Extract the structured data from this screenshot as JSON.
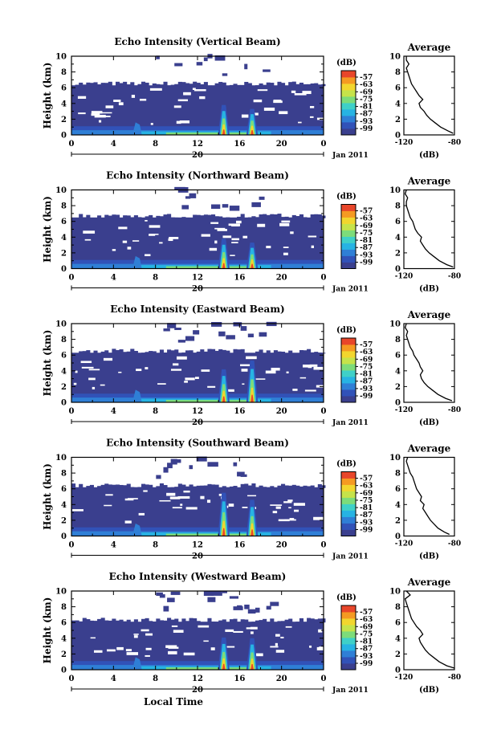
{
  "chart_data": [
    {
      "type": "heatmap",
      "title": "Echo Intensity (Vertical Beam)",
      "ylabel": "Height (km)",
      "x_ticks": [
        "0",
        "4",
        "8",
        "12",
        "16",
        "20",
        "0"
      ],
      "date_tick": "20",
      "date_label": "Jan 2011",
      "y_ticks": [
        "0",
        "2",
        "4",
        "6",
        "8",
        "10"
      ],
      "xlim": [
        0,
        24
      ],
      "ylim": [
        0,
        10
      ],
      "colorbar": {
        "unit": "(dB)",
        "ticks": [
          "-57",
          "-63",
          "-69",
          "-75",
          "-81",
          "-87",
          "-93",
          "-99"
        ]
      },
      "echo_top_km": 6.3,
      "spikes": [
        {
          "time_h": 14.5,
          "top_km": 3.8
        },
        {
          "time_h": 17.2,
          "top_km": 3.3
        }
      ],
      "profile": {
        "title": "Average",
        "xlabel": "(dB)",
        "x_ticks": [
          "-120",
          "-80"
        ],
        "xlim": [
          -120,
          -80
        ],
        "height_km": [
          0.2,
          0.5,
          1.0,
          1.5,
          2.0,
          2.5,
          3.0,
          3.5,
          4.0,
          4.5,
          5.0,
          5.5,
          6.0,
          6.5,
          7.0,
          7.5,
          8.0,
          8.5,
          9.0,
          9.5,
          10.0
        ],
        "values_db": [
          -81,
          -85,
          -91,
          -95,
          -99,
          -102,
          -104,
          -107,
          -108,
          -105,
          -108,
          -110,
          -112,
          -114,
          -115,
          -116,
          -117,
          -118,
          -116,
          -118,
          -118
        ]
      }
    },
    {
      "type": "heatmap",
      "title": "Echo Intensity (Northward Beam)",
      "ylabel": "Height (km)",
      "x_ticks": [
        "0",
        "4",
        "8",
        "12",
        "16",
        "20",
        "0"
      ],
      "date_tick": "20",
      "date_label": "Jan 2011",
      "y_ticks": [
        "0",
        "2",
        "4",
        "6",
        "8",
        "10"
      ],
      "xlim": [
        0,
        24
      ],
      "ylim": [
        0,
        10
      ],
      "colorbar": {
        "unit": "(dB)",
        "ticks": [
          "-57",
          "-63",
          "-69",
          "-75",
          "-81",
          "-87",
          "-93",
          "-99"
        ]
      },
      "echo_top_km": 6.5,
      "spikes": [
        {
          "time_h": 14.5,
          "top_km": 3.8
        },
        {
          "time_h": 17.2,
          "top_km": 3.3
        }
      ],
      "profile": {
        "title": "Average",
        "xlabel": "(dB)",
        "x_ticks": [
          "-120",
          "-80"
        ],
        "xlim": [
          -120,
          -80
        ],
        "height_km": [
          0.2,
          0.5,
          1.0,
          1.5,
          2.0,
          2.5,
          3.0,
          3.5,
          4.0,
          4.5,
          5.0,
          5.5,
          6.0,
          6.5,
          7.0,
          7.5,
          8.0,
          8.5,
          9.0,
          9.5,
          10.0
        ],
        "values_db": [
          -81,
          -86,
          -92,
          -96,
          -100,
          -103,
          -105,
          -107,
          -106,
          -109,
          -111,
          -112,
          -113,
          -115,
          -116,
          -117,
          -118,
          -118,
          -117,
          -119,
          -118
        ]
      }
    },
    {
      "type": "heatmap",
      "title": "Echo Intensity (Eastward Beam)",
      "ylabel": "Height (km)",
      "x_ticks": [
        "0",
        "4",
        "8",
        "12",
        "16",
        "20",
        "0"
      ],
      "date_tick": "20",
      "date_label": "Jan 2011",
      "y_ticks": [
        "0",
        "2",
        "4",
        "6",
        "8",
        "10"
      ],
      "xlim": [
        0,
        24
      ],
      "ylim": [
        0,
        10
      ],
      "colorbar": {
        "unit": "(dB)",
        "ticks": [
          "-57",
          "-63",
          "-69",
          "-75",
          "-81",
          "-87",
          "-93",
          "-99"
        ]
      },
      "echo_top_km": 6.3,
      "spikes": [
        {
          "time_h": 14.5,
          "top_km": 4.2
        },
        {
          "time_h": 17.2,
          "top_km": 5.3
        }
      ],
      "profile": {
        "title": "Average",
        "xlabel": "(dB)",
        "x_ticks": [
          "-120",
          "-80"
        ],
        "xlim": [
          -120,
          -80
        ],
        "height_km": [
          0.2,
          0.5,
          1.0,
          1.5,
          2.0,
          2.5,
          3.0,
          3.5,
          4.0,
          4.5,
          5.0,
          5.5,
          6.0,
          6.5,
          7.0,
          7.5,
          8.0,
          8.5,
          9.0,
          9.5,
          10.0
        ],
        "values_db": [
          -82,
          -87,
          -93,
          -97,
          -101,
          -104,
          -106,
          -107,
          -105,
          -107,
          -108,
          -110,
          -112,
          -113,
          -115,
          -116,
          -117,
          -118,
          -117,
          -119,
          -118
        ]
      }
    },
    {
      "type": "heatmap",
      "title": "Echo Intensity (Southward Beam)",
      "ylabel": "Height (km)",
      "x_ticks": [
        "0",
        "4",
        "8",
        "12",
        "16",
        "20",
        "0"
      ],
      "date_tick": "20",
      "date_label": "Jan 2011",
      "y_ticks": [
        "0",
        "2",
        "4",
        "6",
        "8",
        "10"
      ],
      "xlim": [
        0,
        24
      ],
      "ylim": [
        0,
        10
      ],
      "colorbar": {
        "unit": "(dB)",
        "ticks": [
          "-57",
          "-63",
          "-69",
          "-75",
          "-81",
          "-87",
          "-93",
          "-99"
        ]
      },
      "echo_top_km": 6.2,
      "spikes": [
        {
          "time_h": 14.5,
          "top_km": 5.5
        },
        {
          "time_h": 17.2,
          "top_km": 4.6
        }
      ],
      "profile": {
        "title": "Average",
        "xlabel": "(dB)",
        "x_ticks": [
          "-120",
          "-80"
        ],
        "xlim": [
          -120,
          -80
        ],
        "height_km": [
          0.2,
          0.5,
          1.0,
          1.5,
          2.0,
          2.5,
          3.0,
          3.5,
          4.0,
          4.5,
          5.0,
          5.5,
          6.0,
          6.5,
          7.0,
          7.5,
          8.0,
          8.5,
          9.0,
          9.5,
          10.0
        ],
        "values_db": [
          -84,
          -88,
          -93,
          -96,
          -99,
          -101,
          -103,
          -105,
          -104,
          -107,
          -106,
          -108,
          -110,
          -111,
          -112,
          -113,
          -115,
          -116,
          -117,
          -118,
          -117
        ]
      }
    },
    {
      "type": "heatmap",
      "title": "Echo Intensity (Westward Beam)",
      "ylabel": "Height (km)",
      "x_ticks": [
        "0",
        "4",
        "8",
        "12",
        "16",
        "20",
        "0"
      ],
      "date_tick": "20",
      "date_label": "Jan 2011",
      "xlabel": "Local Time",
      "y_ticks": [
        "0",
        "2",
        "4",
        "6",
        "8",
        "10"
      ],
      "xlim": [
        0,
        24
      ],
      "ylim": [
        0,
        10
      ],
      "colorbar": {
        "unit": "(dB)",
        "ticks": [
          "-57",
          "-63",
          "-69",
          "-75",
          "-81",
          "-87",
          "-93",
          "-99"
        ]
      },
      "echo_top_km": 6.1,
      "spikes": [
        {
          "time_h": 14.5,
          "top_km": 4.1
        },
        {
          "time_h": 17.2,
          "top_km": 4.0
        }
      ],
      "profile": {
        "title": "Average",
        "xlabel": "(dB)",
        "x_ticks": [
          "-120",
          "-80"
        ],
        "xlim": [
          -120,
          -80
        ],
        "height_km": [
          0.2,
          0.5,
          1.0,
          1.5,
          2.0,
          2.5,
          3.0,
          3.5,
          4.0,
          4.5,
          5.0,
          5.5,
          6.0,
          6.5,
          7.0,
          7.5,
          8.0,
          8.5,
          9.0,
          9.5,
          10.0
        ],
        "values_db": [
          -80,
          -86,
          -92,
          -96,
          -100,
          -103,
          -105,
          -107,
          -108,
          -105,
          -107,
          -110,
          -112,
          -114,
          -115,
          -116,
          -117,
          -118,
          -119,
          -115,
          -118
        ]
      }
    }
  ]
}
